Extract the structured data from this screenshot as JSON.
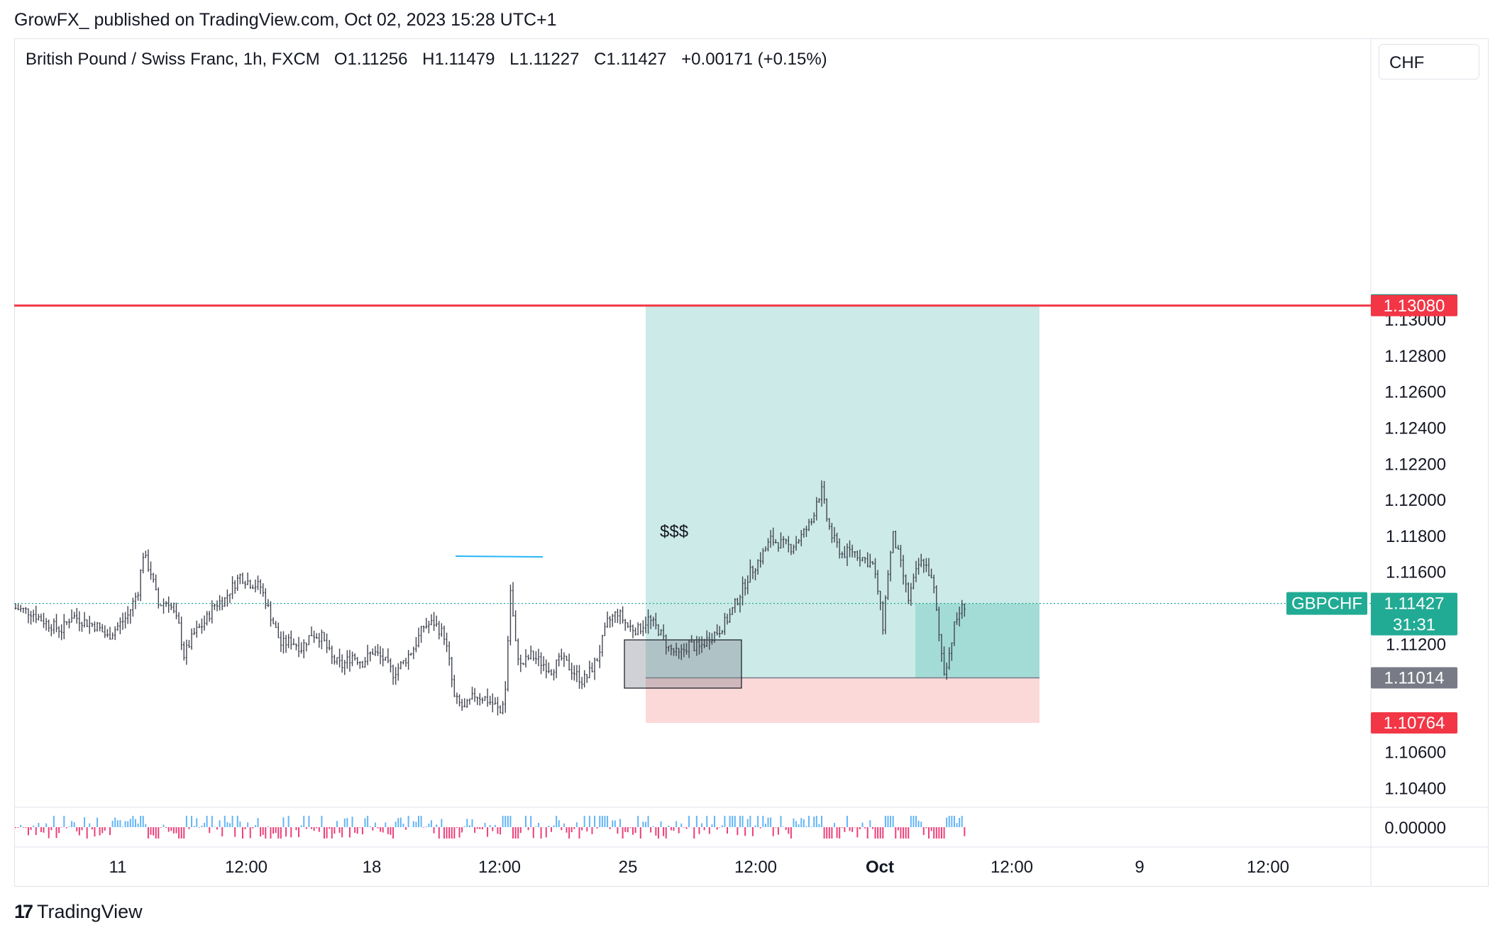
{
  "header": {
    "published": "GrowFX_ published on TradingView.com, Oct 02, 2023 15:28 UTC+1"
  },
  "legend": {
    "symbol": "British Pound / Swiss Franc, 1h, FXCM",
    "o_label": "O",
    "o_value": "1.11256",
    "h_label": "H",
    "h_value": "1.11479",
    "l_label": "L",
    "l_value": "1.11227",
    "c_label": "C",
    "c_value": "1.11427",
    "change": "+0.00171 (+0.15%)"
  },
  "currency_button": "CHF",
  "footer": {
    "brand": "TradingView"
  },
  "chart_data": {
    "type": "candlestick",
    "symbol": "GBPCHF",
    "interval": "1h",
    "ylim": [
      1.103,
      1.1338
    ],
    "y_ticks": [
      "1.13000",
      "1.12800",
      "1.12600",
      "1.12400",
      "1.12200",
      "1.12000",
      "1.11800",
      "1.11600",
      "1.11200",
      "1.10600",
      "1.10400"
    ],
    "x_ticks": [
      "11",
      "12:00",
      "18",
      "12:00",
      "25",
      "12:00",
      "Oct",
      "12:00",
      "9",
      "12:00"
    ],
    "oscillator_label": "0.00000",
    "price_tags": [
      {
        "value": "1.13084",
        "color": "#089981"
      },
      {
        "value": "1.13080",
        "color": "#f23645"
      },
      {
        "value": "1.11427",
        "sub": "31:31",
        "color": "#22ab94"
      },
      {
        "value": "1.11014",
        "color": "#787b86"
      },
      {
        "value": "1.10764",
        "color": "#f23645"
      }
    ],
    "symbol_tag": "GBPCHF",
    "resistance_line": 1.1308,
    "current_price": 1.11427,
    "position": {
      "entry": 1.11014,
      "target": 1.13084,
      "stop": 1.10764
    },
    "annotation": "$$$",
    "close_path": [
      [
        0,
        1.114
      ],
      [
        6,
        1.1138
      ],
      [
        12,
        1.1132
      ],
      [
        18,
        1.1128
      ],
      [
        22,
        1.1136
      ],
      [
        28,
        1.1132
      ],
      [
        32,
        1.113
      ],
      [
        36,
        1.1124
      ],
      [
        40,
        1.113
      ],
      [
        44,
        1.1136
      ],
      [
        48,
        1.115
      ],
      [
        50,
        1.117
      ],
      [
        53,
        1.116
      ],
      [
        56,
        1.1142
      ],
      [
        60,
        1.1144
      ],
      [
        64,
        1.113
      ],
      [
        66,
        1.1114
      ],
      [
        70,
        1.1126
      ],
      [
        74,
        1.1132
      ],
      [
        78,
        1.1142
      ],
      [
        82,
        1.1145
      ],
      [
        84,
        1.115
      ],
      [
        88,
        1.1158
      ],
      [
        92,
        1.1154
      ],
      [
        96,
        1.1152
      ],
      [
        100,
        1.1136
      ],
      [
        104,
        1.112
      ],
      [
        108,
        1.1122
      ],
      [
        112,
        1.1118
      ],
      [
        116,
        1.1126
      ],
      [
        120,
        1.1124
      ],
      [
        124,
        1.1112
      ],
      [
        128,
        1.1108
      ],
      [
        132,
        1.1114
      ],
      [
        136,
        1.111
      ],
      [
        140,
        1.1116
      ],
      [
        144,
        1.1112
      ],
      [
        148,
        1.1104
      ],
      [
        152,
        1.111
      ],
      [
        156,
        1.1118
      ],
      [
        160,
        1.113
      ],
      [
        164,
        1.1132
      ],
      [
        168,
        1.1125
      ],
      [
        170,
        1.111
      ],
      [
        172,
        1.109
      ],
      [
        176,
        1.1084
      ],
      [
        180,
        1.1092
      ],
      [
        184,
        1.109
      ],
      [
        188,
        1.1086
      ],
      [
        190,
        1.1082
      ],
      [
        192,
        1.1095
      ],
      [
        194,
        1.115
      ],
      [
        196,
        1.112
      ],
      [
        198,
        1.1108
      ],
      [
        202,
        1.1114
      ],
      [
        206,
        1.111
      ],
      [
        210,
        1.1106
      ],
      [
        214,
        1.1112
      ],
      [
        218,
        1.1106
      ],
      [
        222,
        1.11
      ],
      [
        224,
        1.1102
      ],
      [
        228,
        1.1112
      ],
      [
        232,
        1.1132
      ],
      [
        236,
        1.1138
      ],
      [
        240,
        1.113
      ],
      [
        244,
        1.1128
      ],
      [
        248,
        1.1134
      ],
      [
        252,
        1.1128
      ],
      [
        256,
        1.1118
      ],
      [
        260,
        1.1114
      ],
      [
        264,
        1.112
      ],
      [
        268,
        1.1118
      ],
      [
        272,
        1.1124
      ],
      [
        276,
        1.1128
      ],
      [
        280,
        1.1136
      ],
      [
        284,
        1.1148
      ],
      [
        288,
        1.116
      ],
      [
        292,
        1.1168
      ],
      [
        296,
        1.1178
      ],
      [
        300,
        1.1176
      ],
      [
        304,
        1.1174
      ],
      [
        308,
        1.118
      ],
      [
        312,
        1.1188
      ],
      [
        314,
        1.12
      ],
      [
        316,
        1.1205
      ],
      [
        318,
        1.119
      ],
      [
        320,
        1.118
      ],
      [
        324,
        1.117
      ],
      [
        328,
        1.1172
      ],
      [
        332,
        1.1168
      ],
      [
        336,
        1.1164
      ],
      [
        338,
        1.115
      ],
      [
        340,
        1.113
      ],
      [
        342,
        1.116
      ],
      [
        344,
        1.118
      ],
      [
        346,
        1.117
      ],
      [
        348,
        1.1158
      ],
      [
        350,
        1.1145
      ],
      [
        352,
        1.1155
      ],
      [
        354,
        1.1164
      ],
      [
        356,
        1.1166
      ],
      [
        358,
        1.116
      ],
      [
        360,
        1.115
      ],
      [
        362,
        1.1125
      ],
      [
        364,
        1.1105
      ],
      [
        366,
        1.1115
      ],
      [
        368,
        1.113
      ],
      [
        370,
        1.1138
      ],
      [
        372,
        1.1142
      ]
    ]
  }
}
